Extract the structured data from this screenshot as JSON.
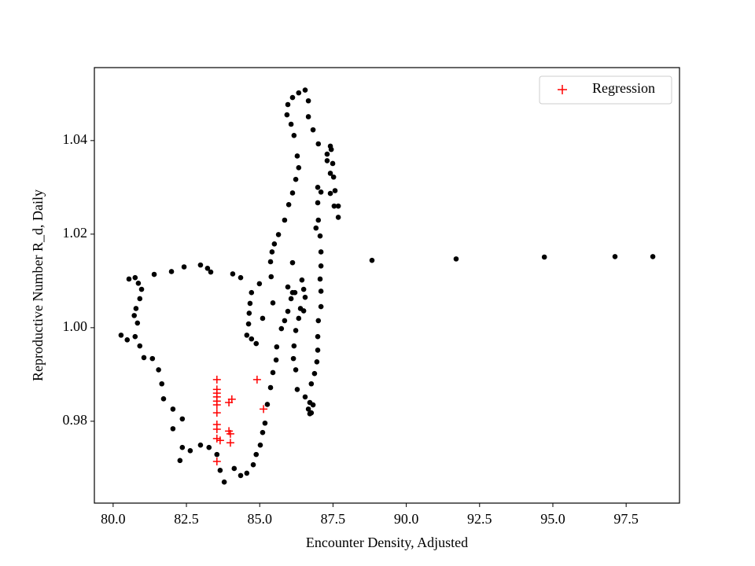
{
  "chart_data": {
    "type": "scatter",
    "xlabel": "Encounter Density, Adjusted",
    "ylabel": "Reproductive Number R_d, Daily",
    "xlim": [
      79.36,
      99.32
    ],
    "ylim": [
      0.9625,
      1.0556
    ],
    "xticks": [
      {
        "value": 80,
        "label": "80.0"
      },
      82.5,
      {
        "value": 85,
        "label": "85.0"
      },
      87.5,
      {
        "value": 90,
        "label": "90.0"
      },
      92.5,
      {
        "value": 95,
        "label": "95.0"
      },
      97.5
    ],
    "yticks": [
      0.98,
      {
        "value": 1.0,
        "label": "1.00"
      },
      1.02,
      1.04
    ],
    "legend": "upper right",
    "series": [
      {
        "color": "#000000",
        "marker": "dot",
        "x": [
          80.27,
          80.48,
          80.75,
          80.91,
          81.05,
          81.34,
          81.55,
          81.66,
          81.72,
          82.04,
          82.36,
          82.04,
          82.36,
          82.63,
          82.28,
          82.98,
          83.27,
          83.54,
          83.65,
          83.79,
          84.13,
          84.35,
          84.56,
          84.78,
          84.88,
          85.02,
          85.1,
          85.18,
          85.26,
          85.37,
          85.45,
          85.56,
          85.58,
          85.74,
          85.85,
          85.96,
          86.07,
          86.2,
          86.44,
          86.5,
          86.55,
          86.5,
          86.33,
          86.23,
          86.17,
          86.15,
          86.23,
          86.28,
          86.55,
          86.66,
          86.76,
          86.82,
          86.76,
          86.87,
          86.95,
          86.98,
          86.98,
          87.0,
          87.09,
          87.09,
          87.06,
          87.09,
          87.09,
          87.06,
          87.0,
          86.98,
          87.09,
          87.41,
          87.54,
          87.68,
          87.68,
          87.57,
          87.52,
          87.49,
          87.44,
          87.3,
          87.0,
          86.82,
          86.66,
          86.66,
          86.55,
          86.33,
          86.12,
          85.96,
          85.93,
          86.07,
          86.17,
          86.28,
          86.33,
          86.23,
          86.12,
          85.99,
          85.85,
          85.64,
          85.5,
          85.42,
          85.37,
          85.39,
          84.99,
          84.72,
          84.67,
          84.64,
          84.62,
          84.56,
          84.72,
          84.88,
          85.1,
          85.45,
          85.96,
          86.12,
          86.39,
          80.54,
          80.75,
          80.86,
          80.97,
          80.91,
          80.78,
          80.72,
          80.83,
          81.4,
          81.99,
          82.42,
          82.98,
          83.22,
          83.33,
          84.08,
          84.35,
          86.12,
          88.83,
          91.7,
          94.71,
          97.12,
          98.41,
          87.41,
          87.3,
          87.41,
          86.98,
          86.92,
          86.71,
          86.71
        ],
        "values": [
          0.9984,
          0.9974,
          0.9981,
          0.9961,
          0.9936,
          0.9934,
          0.991,
          0.988,
          0.9848,
          0.9826,
          0.9805,
          0.9784,
          0.9744,
          0.9737,
          0.9716,
          0.9749,
          0.9744,
          0.9729,
          0.9695,
          0.967,
          0.9699,
          0.9684,
          0.9689,
          0.9707,
          0.9729,
          0.9749,
          0.9776,
          0.9796,
          0.9836,
          0.9872,
          0.9904,
          0.9931,
          0.9959,
          0.9998,
          1.0015,
          1.0035,
          1.0062,
          1.0075,
          1.0102,
          1.0082,
          1.0065,
          1.0036,
          1.002,
          0.9994,
          0.9961,
          0.9934,
          0.991,
          0.9868,
          0.9852,
          0.9826,
          0.9818,
          0.9835,
          0.988,
          0.9902,
          0.9927,
          0.9952,
          0.9981,
          1.0015,
          1.0045,
          1.0078,
          1.0104,
          1.0132,
          1.0162,
          1.0196,
          1.023,
          1.0267,
          1.029,
          1.0287,
          1.026,
          1.0236,
          1.026,
          1.0293,
          1.0322,
          1.0351,
          1.0381,
          1.0371,
          1.0393,
          1.0423,
          1.0451,
          1.0485,
          1.0508,
          1.0502,
          1.0492,
          1.0477,
          1.0455,
          1.0435,
          1.0411,
          1.0367,
          1.0342,
          1.0317,
          1.0288,
          1.0263,
          1.023,
          1.0199,
          1.0179,
          1.0162,
          1.0141,
          1.0109,
          1.0094,
          1.0075,
          1.0052,
          1.0031,
          1.0008,
          0.9984,
          0.9976,
          0.9966,
          1.002,
          1.0053,
          1.0087,
          1.0075,
          1.0041,
          1.0104,
          1.0107,
          1.0095,
          1.0082,
          1.0062,
          1.0041,
          1.0026,
          1.001,
          1.0114,
          1.012,
          1.013,
          1.0134,
          1.0127,
          1.0119,
          1.0115,
          1.0107,
          1.0139,
          1.0144,
          1.0147,
          1.0151,
          1.0152,
          1.0152,
          1.0388,
          1.0357,
          1.033,
          1.03,
          1.0213,
          0.9816,
          0.984
        ]
      },
      {
        "name": "Regression",
        "color": "#ff0000",
        "marker": "plus",
        "x": [
          83.54,
          83.54,
          83.54,
          83.54,
          83.54,
          83.54,
          83.54,
          83.54,
          83.54,
          83.54,
          83.54,
          83.95,
          84.0,
          84.0,
          84.05,
          83.95,
          84.91,
          85.13,
          83.65
        ],
        "values": [
          0.9889,
          0.9868,
          0.986,
          0.9852,
          0.9843,
          0.9835,
          0.9818,
          0.9793,
          0.9783,
          0.9763,
          0.9714,
          0.9779,
          0.9773,
          0.9754,
          0.9847,
          0.984,
          0.9889,
          0.9826,
          0.9759
        ]
      }
    ]
  }
}
